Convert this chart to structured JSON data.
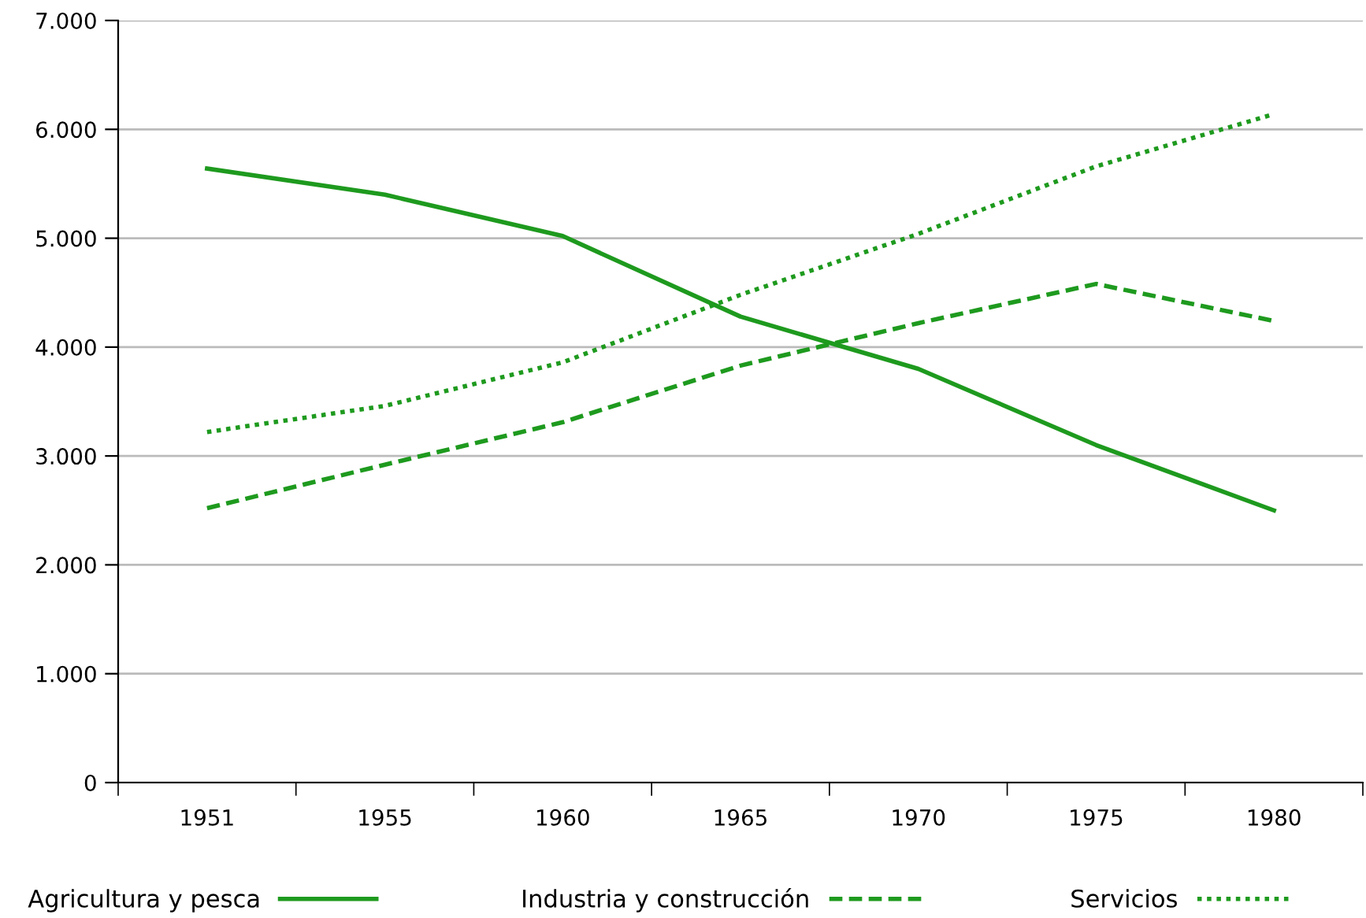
{
  "chart_data": {
    "type": "line",
    "categories": [
      "1951",
      "1955",
      "1960",
      "1965",
      "1970",
      "1975",
      "1980"
    ],
    "series": [
      {
        "name": "Agricultura y pesca",
        "color": "#1e9a1e",
        "line_style": "solid",
        "values": [
          5640,
          5400,
          5020,
          4280,
          3800,
          3100,
          2500
        ]
      },
      {
        "name": "Industria y construcción",
        "color": "#1e9a1e",
        "line_style": "dashed",
        "values": [
          2520,
          2920,
          3310,
          3830,
          4220,
          4580,
          4240
        ]
      },
      {
        "name": "Servicios",
        "color": "#1e9a1e",
        "line_style": "dotted",
        "values": [
          3220,
          3460,
          3860,
          4480,
          5040,
          5660,
          6140
        ]
      }
    ],
    "ylim": [
      0,
      7000
    ],
    "yticks": [
      {
        "value": 0,
        "label": "0"
      },
      {
        "value": 1000,
        "label": "1.000"
      },
      {
        "value": 2000,
        "label": "2.000"
      },
      {
        "value": 3000,
        "label": "3.000"
      },
      {
        "value": 4000,
        "label": "4.000"
      },
      {
        "value": 5000,
        "label": "5.000"
      },
      {
        "value": 6000,
        "label": "6.000"
      },
      {
        "value": 7000,
        "label": "7.000"
      }
    ],
    "grid": "y",
    "legend": "bottom",
    "marker": "none"
  }
}
